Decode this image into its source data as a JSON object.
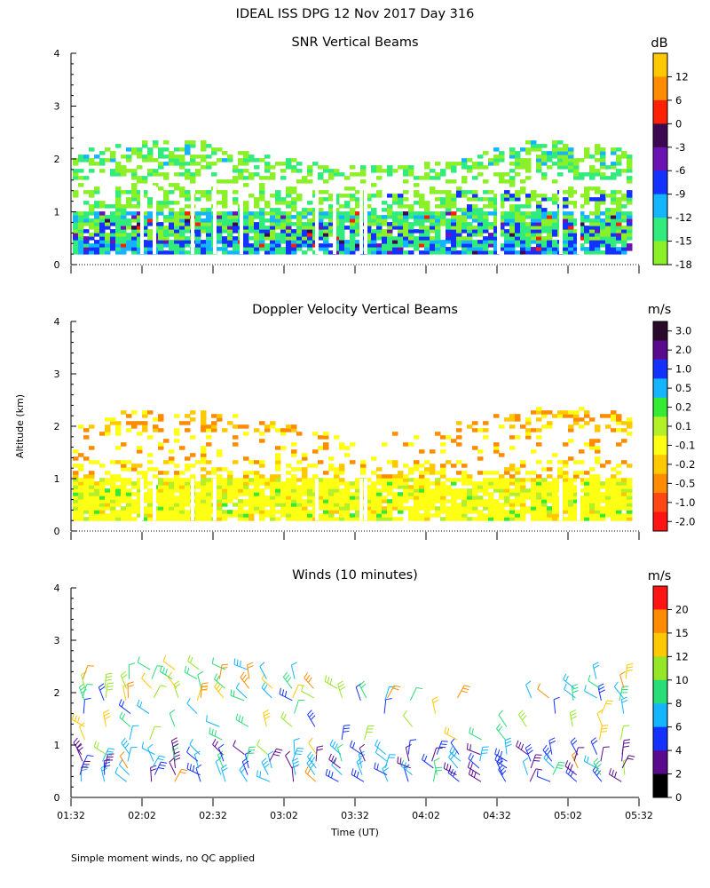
{
  "figure_title": "IDEAL ISS DPG  12 Nov 2017 Day 316",
  "y_axis_label": "Altitude (km)",
  "x_axis_label": "Time (UT)",
  "footnote": "Simple moment winds, no QC applied",
  "chart_data": [
    {
      "type": "heatmap",
      "title": "SNR Vertical Beams",
      "colorbar_unit": "dB",
      "colorbar_labels": [
        "12",
        "6",
        "0",
        "-3",
        "-6",
        "-9",
        "-12",
        "-15",
        "-18"
      ],
      "colorbar_colors": [
        "#ffc800",
        "#ff8c00",
        "#ff2000",
        "#3c0850",
        "#6a14b4",
        "#1432ff",
        "#14b4ff",
        "#32eb7d",
        "#8cf028"
      ],
      "x_ticks": [
        "01:32",
        "02:02",
        "02:32",
        "03:02",
        "03:32",
        "04:02",
        "04:32",
        "05:02",
        "05:32"
      ],
      "y_ticks": [
        "0",
        "1",
        "2",
        "3",
        "4"
      ],
      "xlim": [
        "01:32",
        "05:32"
      ],
      "ylim": [
        0,
        4
      ],
      "y_unit": "km",
      "data_coverage_km": [
        0.2,
        2.5
      ],
      "grid": false
    },
    {
      "type": "heatmap",
      "title": "Doppler Velocity Vertical Beams",
      "colorbar_unit": "m/s",
      "colorbar_labels": [
        "3.0",
        "2.0",
        "1.0",
        "0.5",
        "0.2",
        "0.1",
        "-0.1",
        "-0.2",
        "-0.5",
        "-1.0",
        "-2.0"
      ],
      "colorbar_colors": [
        "#2a0a2a",
        "#5a0a8c",
        "#1432ff",
        "#14b4ff",
        "#32eb32",
        "#b4f028",
        "#ffff14",
        "#ffc800",
        "#ff8c00",
        "#ff4614",
        "#ff1414"
      ],
      "x_ticks": [
        "01:32",
        "02:02",
        "02:32",
        "03:02",
        "03:32",
        "04:02",
        "04:32",
        "05:02",
        "05:32"
      ],
      "y_ticks": [
        "0",
        "1",
        "2",
        "3",
        "4"
      ],
      "xlim": [
        "01:32",
        "05:32"
      ],
      "ylim": [
        0,
        4
      ],
      "y_unit": "km",
      "grid": false
    },
    {
      "type": "scatter",
      "subtype": "wind barbs",
      "title": "Winds (10 minutes)",
      "colorbar_unit": "m/s",
      "colorbar_labels": [
        "20",
        "15",
        "12",
        "10",
        "8",
        "6",
        "4",
        "2",
        "0"
      ],
      "colorbar_colors": [
        "#ff1414",
        "#ff8c00",
        "#ffc800",
        "#96e628",
        "#28dc78",
        "#14b4ff",
        "#1432ff",
        "#5a0a8c",
        "#000000"
      ],
      "x_ticks": [
        "01:32",
        "02:02",
        "02:32",
        "03:02",
        "03:32",
        "04:02",
        "04:32",
        "05:02",
        "05:32"
      ],
      "y_ticks": [
        "0",
        "1",
        "2",
        "3",
        "4"
      ],
      "xlim": [
        "01:32",
        "05:32"
      ],
      "ylim": [
        0,
        4
      ],
      "y_unit": "km",
      "sample_interval_min": 10,
      "grid": false
    }
  ]
}
